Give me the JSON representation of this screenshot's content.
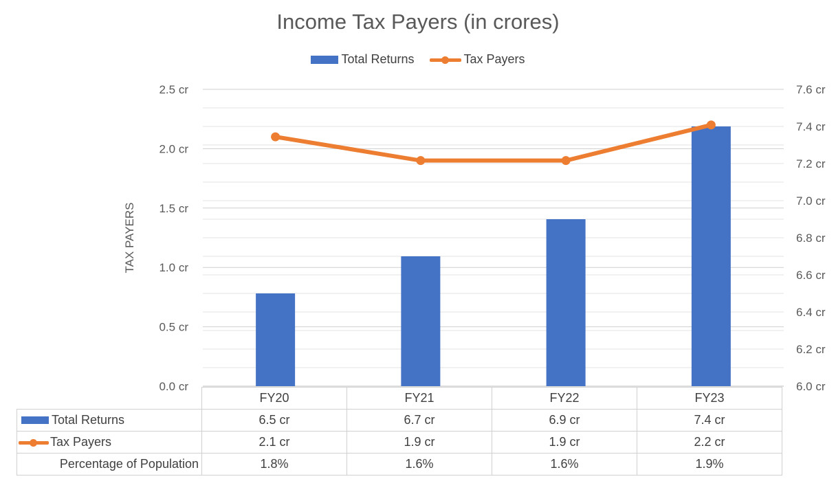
{
  "chart_data": {
    "type": "bar",
    "title": "Income Tax Payers (in crores)",
    "categories": [
      "FY20",
      "FY21",
      "FY22",
      "FY23"
    ],
    "series": [
      {
        "name": "Total Returns",
        "type": "bar",
        "axis": "right",
        "values": [
          6.5,
          6.7,
          6.9,
          7.4
        ],
        "labels": [
          "6.5 cr",
          "6.7 cr",
          "6.9 cr",
          "7.4 cr"
        ],
        "color": "#4472C4"
      },
      {
        "name": "Tax Payers",
        "type": "line",
        "axis": "left",
        "values": [
          2.1,
          1.9,
          1.9,
          2.2
        ],
        "labels": [
          "2.1 cr",
          "1.9 cr",
          "1.9 cr",
          "2.2 cr"
        ],
        "color": "#ED7D31"
      }
    ],
    "extra_rows": [
      {
        "name": "Percentage of Population",
        "values": [
          "1.8%",
          "1.6%",
          "1.6%",
          "1.9%"
        ]
      }
    ],
    "ylabel": "TAX PAYERS",
    "y_left": {
      "range": [
        0,
        2.5
      ],
      "ticks": [
        "0.0 cr",
        "0.5 cr",
        "1.0 cr",
        "1.5 cr",
        "2.0 cr",
        "2.5 cr"
      ]
    },
    "y_right": {
      "range": [
        6.0,
        7.6
      ],
      "ticks": [
        "6.0 cr",
        "6.2 cr",
        "6.4 cr",
        "6.6 cr",
        "6.8 cr",
        "7.0 cr",
        "7.2 cr",
        "7.4 cr",
        "7.6 cr"
      ]
    },
    "grid": true,
    "legend": "top"
  }
}
